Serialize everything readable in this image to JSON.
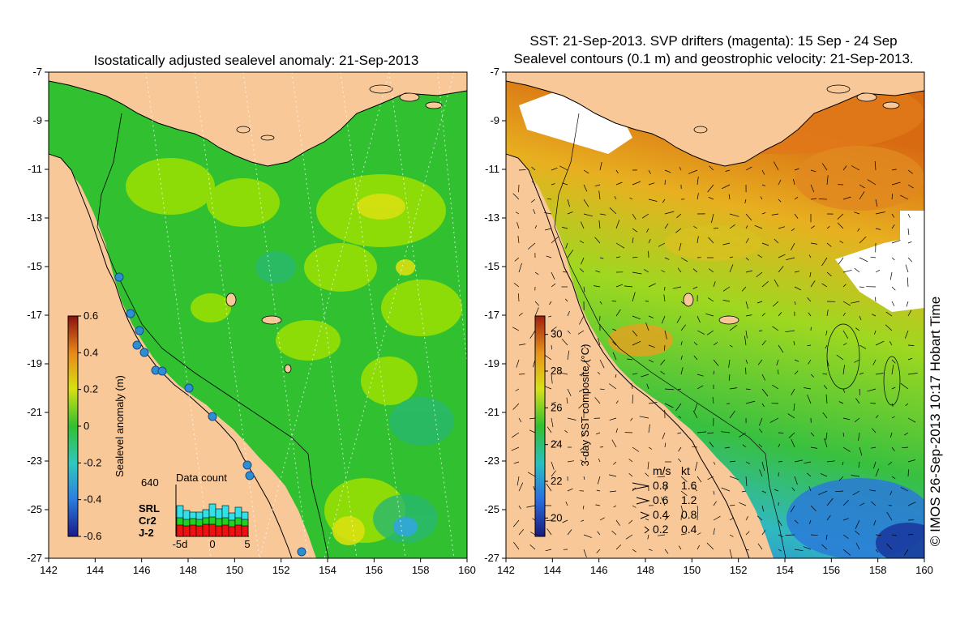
{
  "left_panel": {
    "title": "Isostatically adjusted sealevel anomaly: 21-Sep-2013",
    "colorbar": {
      "label": "Sealevel anomaly (m)",
      "ticks": [
        "0.6",
        "0.4",
        "0.2",
        "0",
        "-0.2",
        "-0.4",
        "-0.6"
      ],
      "range": [
        -0.6,
        0.6
      ]
    },
    "data_count": {
      "title": "Data count",
      "max_label": "640",
      "series": [
        "SRL",
        "Cr2",
        "J-2"
      ],
      "series_colors": [
        "#33e0e8",
        "#22d022",
        "#ee1111"
      ],
      "x_ticks": [
        "-5d",
        "0",
        "5"
      ],
      "srl": [
        380,
        320,
        300,
        300,
        330,
        400,
        340,
        380,
        290,
        360,
        300
      ],
      "cr2": [
        230,
        210,
        220,
        210,
        230,
        240,
        220,
        230,
        200,
        230,
        210
      ],
      "j2": [
        140,
        130,
        140,
        130,
        150,
        150,
        130,
        140,
        120,
        140,
        130
      ]
    }
  },
  "right_panel": {
    "title_line1": "SST: 21-Sep-2013. SVP drifters (magenta): 15 Sep - 24 Sep",
    "title_line2": "Sealevel contours (0.1 m) and geostrophic velocity: 21-Sep-2013.",
    "colorbar": {
      "label": "3-day SST composite (°C)",
      "ticks": [
        "30",
        "28",
        "26",
        "24",
        "22",
        "20"
      ],
      "range": [
        19,
        31
      ]
    },
    "velocity_legend": {
      "header_ms": "m/s",
      "header_kt": "kt",
      "rows": [
        {
          "ms": "0.8",
          "kt": "1.6"
        },
        {
          "ms": "0.6",
          "kt": "1.2"
        },
        {
          "ms": "0.4",
          "kt": "0.8"
        },
        {
          "ms": "0.2",
          "kt": "0.4"
        }
      ]
    }
  },
  "axes": {
    "lon_ticks": [
      "142",
      "144",
      "146",
      "148",
      "150",
      "152",
      "154",
      "156",
      "158",
      "160"
    ],
    "lat_ticks": [
      "-7",
      "-9",
      "-11",
      "-13",
      "-15",
      "-17",
      "-19",
      "-21",
      "-23",
      "-25",
      "-27"
    ],
    "lon_range": [
      142,
      160
    ],
    "lat_range": [
      -27,
      -7
    ]
  },
  "credit": "© IMOS 26-Sep-2013 10:17 Hobart Time",
  "colors": {
    "land": "#f8c898",
    "ocean_slr": "#30c030",
    "slr_pos": "#9ee000",
    "tide_gauge": "#2d8fd0"
  }
}
